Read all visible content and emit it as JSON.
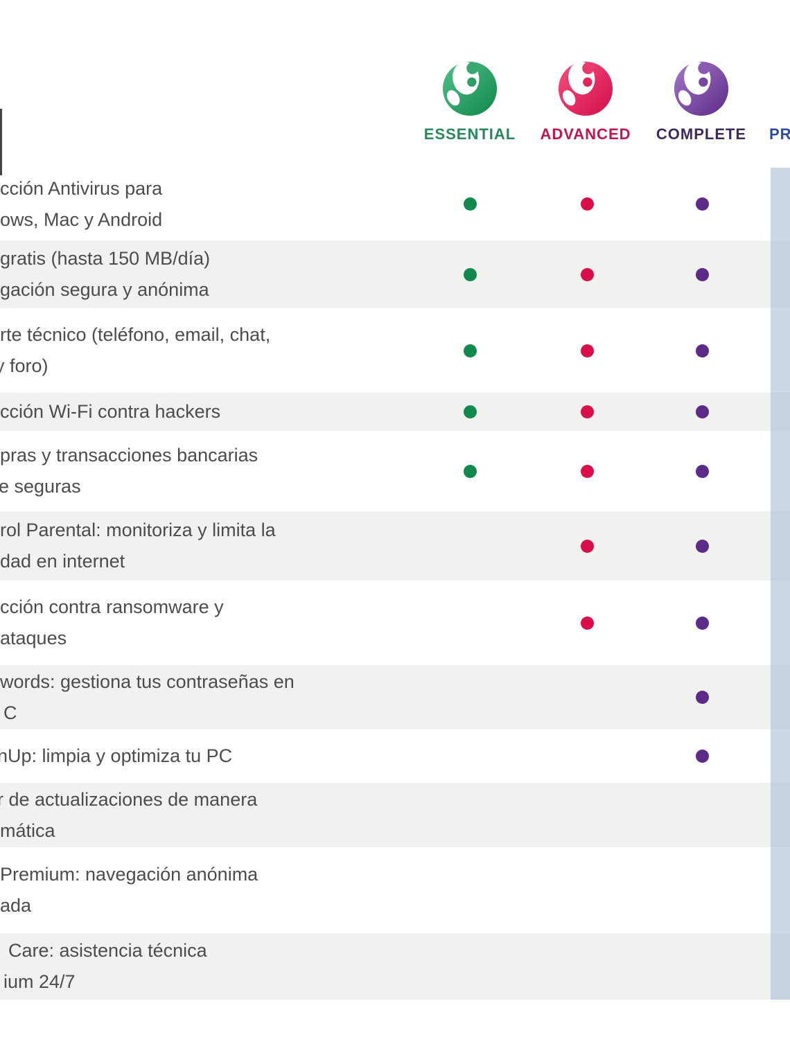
{
  "header": {
    "plans": [
      {
        "name": "essential",
        "label": "ESSENTIAL",
        "brand_color": "#27885b",
        "dot_color": "#12894c"
      },
      {
        "name": "advanced",
        "label": "ADVANCED",
        "brand_color": "#c01550",
        "dot_color": "#d90f4c"
      },
      {
        "name": "complete",
        "label": "COMPLETE",
        "brand_color": "#3f2760",
        "dot_color": "#5c2b87"
      },
      {
        "name": "premium",
        "label": "PR",
        "brand_color": "#2d4aa5",
        "dot_color": null
      }
    ]
  },
  "table": {
    "rows": [
      {
        "feature_lines": [
          "cción Antivirus para",
          "ows, Mac y Android"
        ],
        "included_in": [
          "essential",
          "advanced",
          "complete"
        ],
        "shaded": false
      },
      {
        "feature_lines": [
          "gratis (hasta 150 MB/día)",
          "gación segura y anónima"
        ],
        "included_in": [
          "essential",
          "advanced",
          "complete"
        ],
        "shaded": true
      },
      {
        "feature_lines": [
          "rte técnico (teléfono, email, chat,",
          "y foro)"
        ],
        "included_in": [
          "essential",
          "advanced",
          "complete"
        ],
        "shaded": false
      },
      {
        "feature_lines": [
          "cción Wi-Fi contra hackers"
        ],
        "included_in": [
          "essential",
          "advanced",
          "complete"
        ],
        "shaded": true
      },
      {
        "feature_lines": [
          "pras y transacciones bancarias",
          "e seguras"
        ],
        "included_in": [
          "essential",
          "advanced",
          "complete"
        ],
        "shaded": false
      },
      {
        "feature_lines": [
          "rol Parental: monitoriza y limita la",
          "dad en internet"
        ],
        "included_in": [
          "advanced",
          "complete"
        ],
        "shaded": true
      },
      {
        "feature_lines": [
          "cción contra ransomware y",
          "ataques"
        ],
        "included_in": [
          "advanced",
          "complete"
        ],
        "shaded": false
      },
      {
        "feature_lines": [
          "words: gestiona tus contraseñas en",
          "C"
        ],
        "included_in": [
          "complete"
        ],
        "shaded": true
      },
      {
        "feature_lines": [
          "nUp: limpia y optimiza tu PC"
        ],
        "included_in": [
          "complete"
        ],
        "shaded": false
      },
      {
        "feature_lines": [
          "r de actualizaciones de manera",
          "mática"
        ],
        "included_in": [],
        "shaded": true
      },
      {
        "feature_lines": [
          "Premium: navegación anónima",
          "ada"
        ],
        "included_in": [],
        "shaded": false
      },
      {
        "feature_lines": [
          "Care: asistencia técnica",
          "ium 24/7"
        ],
        "included_in": [],
        "shaded": true
      }
    ]
  },
  "colors": {
    "shaded_row": "#f1f1ef",
    "premium_panel": "rgba(164,184,209,0.55)",
    "feature_text": "#4c4c4c"
  }
}
